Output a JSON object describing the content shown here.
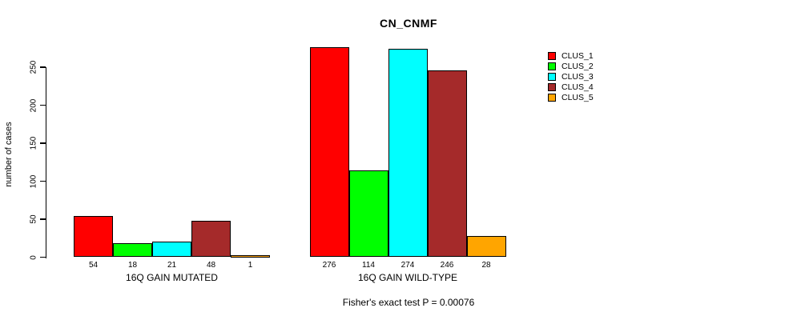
{
  "chart_data": {
    "type": "bar",
    "title": "CN_CNMF",
    "ylabel": "number of cases",
    "xlabel": "",
    "annotation": "Fisher's exact test P = 0.00076",
    "ylim": [
      0,
      250
    ],
    "yticks": [
      0,
      50,
      100,
      150,
      200,
      250
    ],
    "grid": false,
    "legend_position": "top-right",
    "categories": [
      "16Q GAIN MUTATED",
      "16Q GAIN WILD-TYPE"
    ],
    "series": [
      {
        "name": "CLUS_1",
        "color": "#FF0000",
        "values": [
          54,
          276
        ]
      },
      {
        "name": "CLUS_2",
        "color": "#00FF00",
        "values": [
          18,
          114
        ]
      },
      {
        "name": "CLUS_3",
        "color": "#00FFFF",
        "values": [
          21,
          274
        ]
      },
      {
        "name": "CLUS_4",
        "color": "#A52A2A",
        "values": [
          48,
          246
        ]
      },
      {
        "name": "CLUS_5",
        "color": "#FFA500",
        "values": [
          1,
          28
        ]
      }
    ],
    "bar_labels": [
      [
        "54",
        "18",
        "21",
        "48",
        "1"
      ],
      [
        "276",
        "114",
        "274",
        "246",
        "28"
      ]
    ],
    "axis_color": "#000000",
    "text_color": "#000000",
    "background_color": "#FFFFFF"
  }
}
